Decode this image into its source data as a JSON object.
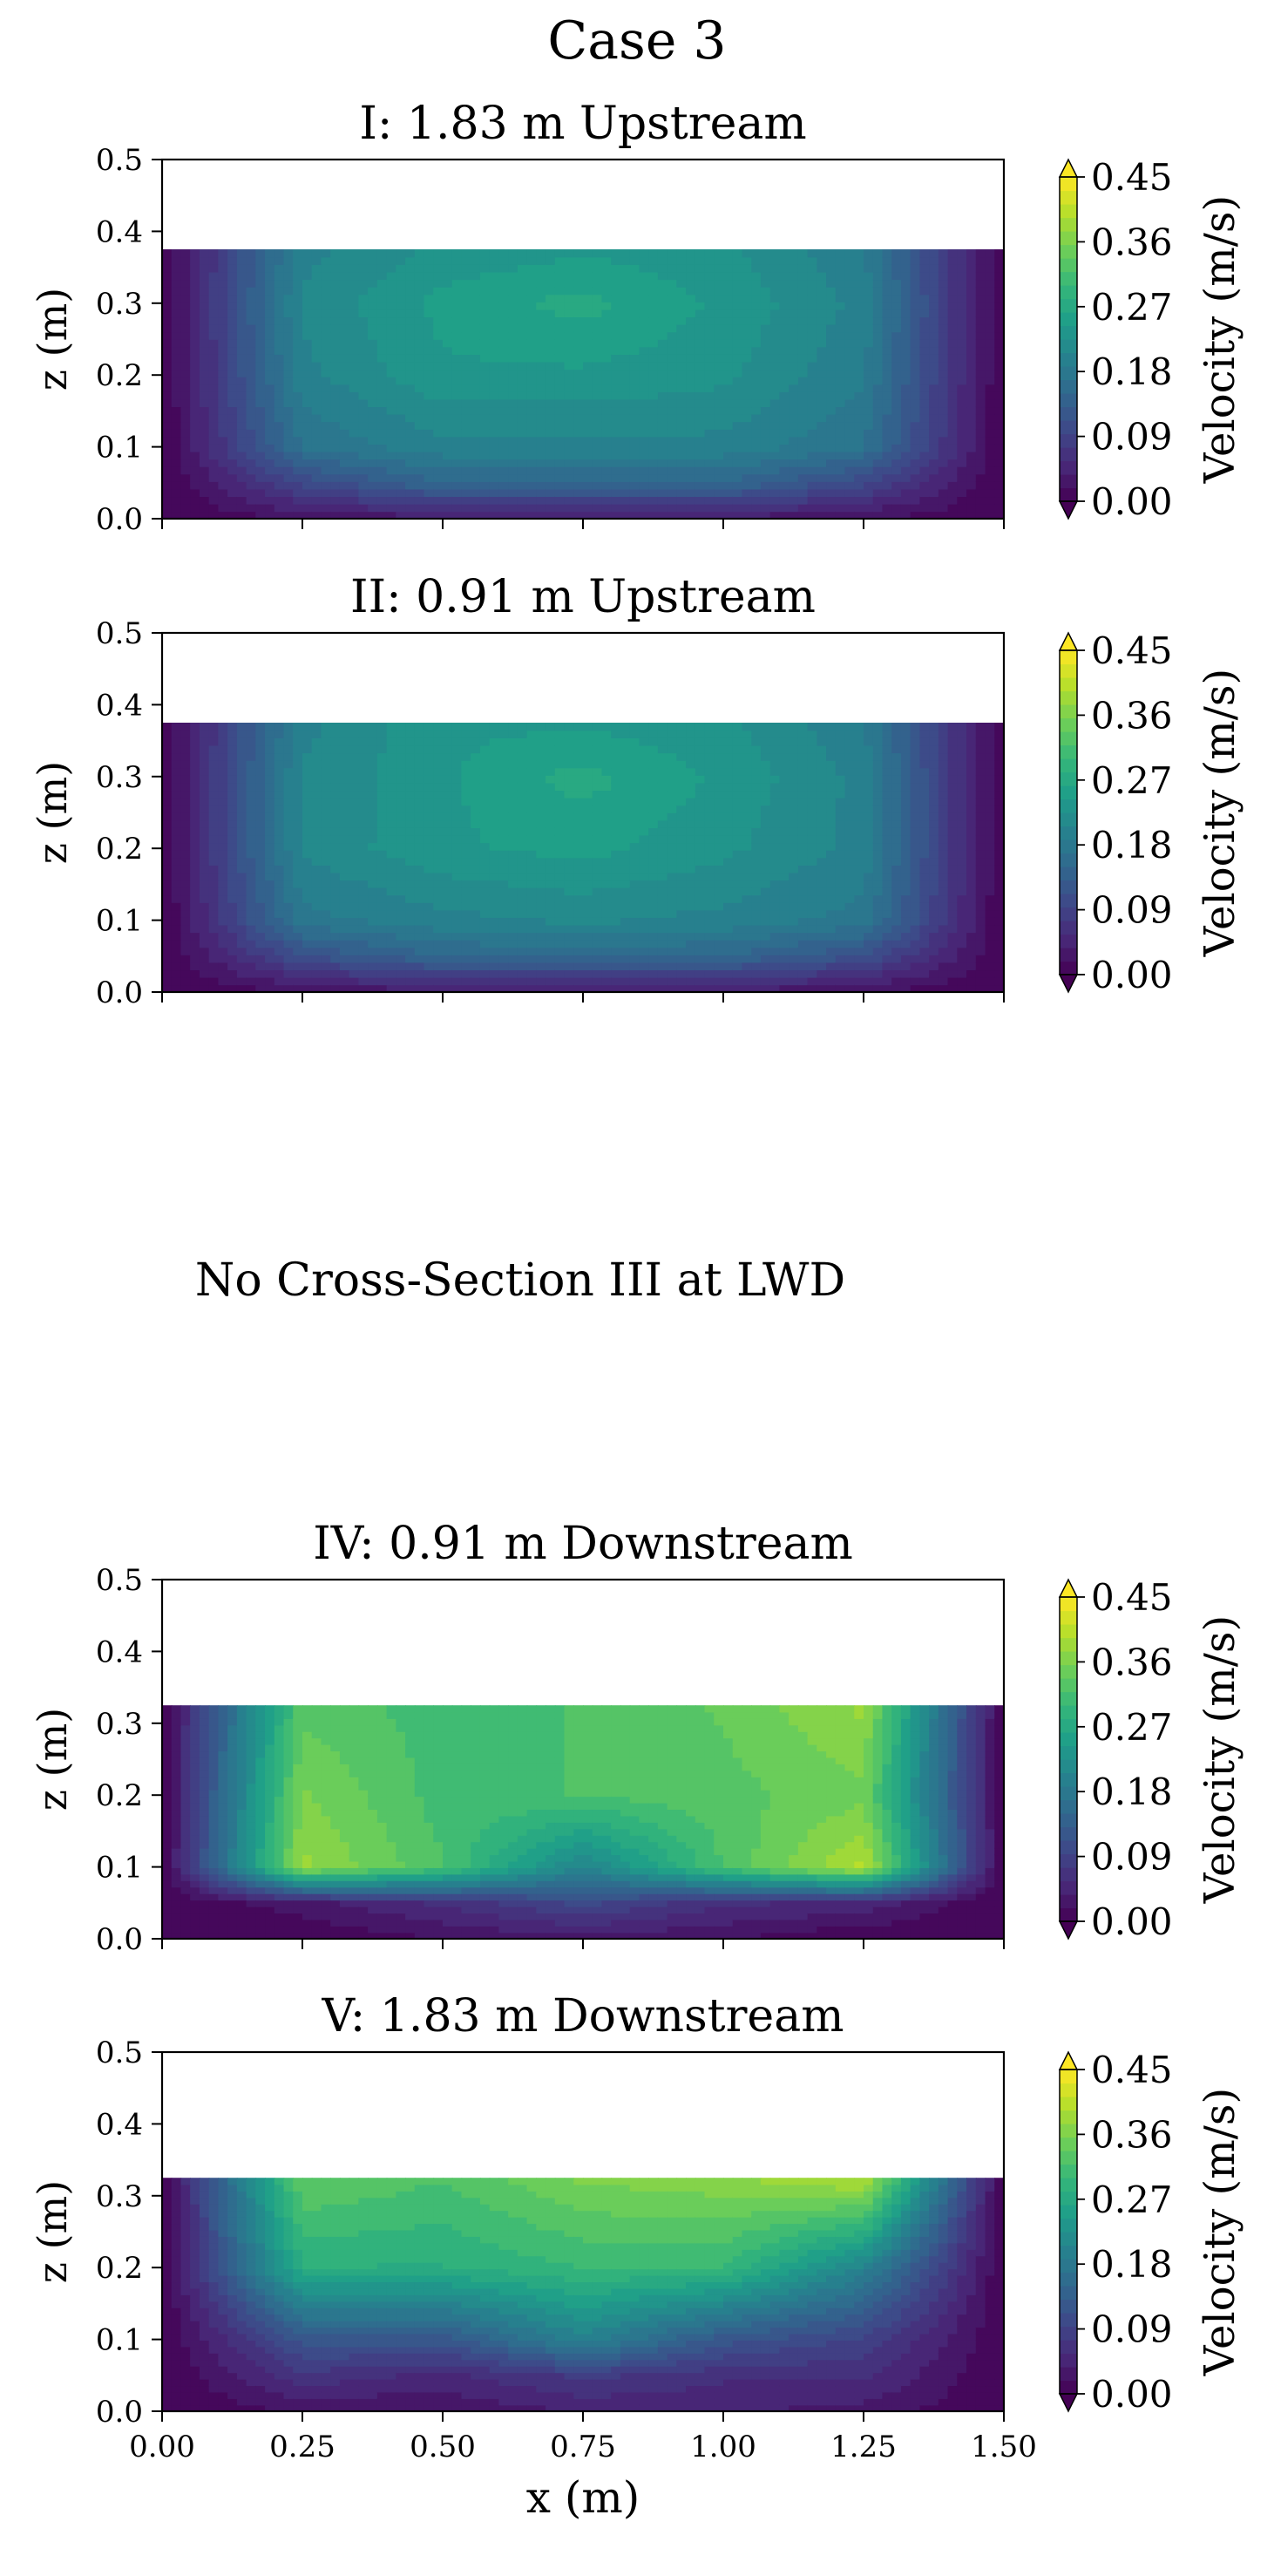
{
  "figure": {
    "title": "Case 3",
    "placeholder_text": "No Cross-Section III at LWD",
    "shared_xlabel": "x (m)"
  },
  "colormap": [
    "#440154",
    "#482878",
    "#3e4989",
    "#31688e",
    "#26828e",
    "#1f9e89",
    "#35b779",
    "#6ece58",
    "#b5de2b",
    "#fde725"
  ],
  "chart_data": [
    {
      "type": "heatmap",
      "title": "I: 1.83 m Upstream",
      "ylabel": "z (m)",
      "xlim": [
        0.0,
        1.5
      ],
      "ylim": [
        0.0,
        0.5
      ],
      "yticks": [
        "0.0",
        "0.1",
        "0.2",
        "0.3",
        "0.4",
        "0.5"
      ],
      "xticks": [],
      "water_depth": 0.375,
      "x": [
        0.0,
        0.25,
        0.5,
        0.75,
        1.0,
        1.25,
        1.5
      ],
      "z": [
        0.0,
        0.05,
        0.1,
        0.2,
        0.3,
        0.375
      ],
      "values": [
        [
          0.0,
          0.02,
          0.03,
          0.03,
          0.03,
          0.02,
          0.0
        ],
        [
          0.0,
          0.1,
          0.15,
          0.15,
          0.15,
          0.1,
          0.0
        ],
        [
          0.0,
          0.17,
          0.2,
          0.2,
          0.2,
          0.17,
          0.0
        ],
        [
          0.0,
          0.2,
          0.24,
          0.24,
          0.23,
          0.19,
          0.0
        ],
        [
          0.0,
          0.21,
          0.25,
          0.27,
          0.24,
          0.2,
          0.0
        ],
        [
          0.0,
          0.2,
          0.23,
          0.24,
          0.23,
          0.19,
          0.0
        ]
      ],
      "colorbar": {
        "label": "Velocity (m/s)",
        "ticks": [
          "0.00",
          "0.09",
          "0.18",
          "0.27",
          "0.36",
          "0.45"
        ],
        "range": [
          0.0,
          0.45
        ]
      }
    },
    {
      "type": "heatmap",
      "title": "II: 0.91 m Upstream",
      "ylabel": "z (m)",
      "xlim": [
        0.0,
        1.5
      ],
      "ylim": [
        0.0,
        0.5
      ],
      "yticks": [
        "0.0",
        "0.1",
        "0.2",
        "0.3",
        "0.4",
        "0.5"
      ],
      "xticks": [],
      "water_depth": 0.375,
      "x": [
        0.0,
        0.25,
        0.5,
        0.75,
        1.0,
        1.25,
        1.5
      ],
      "z": [
        0.0,
        0.05,
        0.1,
        0.2,
        0.3,
        0.375
      ],
      "values": [
        [
          0.0,
          0.02,
          0.03,
          0.03,
          0.03,
          0.02,
          0.0
        ],
        [
          0.0,
          0.11,
          0.15,
          0.15,
          0.15,
          0.11,
          0.0
        ],
        [
          0.0,
          0.18,
          0.2,
          0.21,
          0.2,
          0.18,
          0.0
        ],
        [
          0.0,
          0.21,
          0.24,
          0.25,
          0.23,
          0.2,
          0.0
        ],
        [
          0.0,
          0.21,
          0.24,
          0.27,
          0.24,
          0.2,
          0.0
        ],
        [
          0.0,
          0.2,
          0.24,
          0.24,
          0.23,
          0.19,
          0.0
        ]
      ],
      "colorbar": {
        "label": "Velocity (m/s)",
        "ticks": [
          "0.00",
          "0.09",
          "0.18",
          "0.27",
          "0.36",
          "0.45"
        ],
        "range": [
          0.0,
          0.45
        ]
      }
    },
    {
      "type": "heatmap",
      "title": "IV: 0.91 m Downstream",
      "ylabel": "z (m)",
      "xlim": [
        0.0,
        1.5
      ],
      "ylim": [
        0.0,
        0.5
      ],
      "yticks": [
        "0.0",
        "0.1",
        "0.2",
        "0.3",
        "0.4",
        "0.5"
      ],
      "xticks": [],
      "water_depth": 0.325,
      "x": [
        0.0,
        0.25,
        0.5,
        0.75,
        1.0,
        1.25,
        1.5
      ],
      "z": [
        0.0,
        0.05,
        0.1,
        0.2,
        0.325
      ],
      "values": [
        [
          0.0,
          0.0,
          0.02,
          0.03,
          0.02,
          0.0,
          0.0
        ],
        [
          0.0,
          0.03,
          0.06,
          0.1,
          0.06,
          0.05,
          0.0
        ],
        [
          0.0,
          0.38,
          0.32,
          0.2,
          0.32,
          0.4,
          0.0
        ],
        [
          0.0,
          0.36,
          0.31,
          0.32,
          0.33,
          0.35,
          0.0
        ],
        [
          0.0,
          0.33,
          0.31,
          0.32,
          0.34,
          0.38,
          0.0
        ]
      ],
      "colorbar": {
        "label": "Velocity (m/s)",
        "ticks": [
          "0.00",
          "0.09",
          "0.18",
          "0.27",
          "0.36",
          "0.45"
        ],
        "range": [
          0.0,
          0.45
        ]
      }
    },
    {
      "type": "heatmap",
      "title": "V: 1.83 m Downstream",
      "ylabel": "z (m)",
      "xlabel": "x (m)",
      "xlim": [
        0.0,
        1.5
      ],
      "ylim": [
        0.0,
        0.5
      ],
      "yticks": [
        "0.0",
        "0.1",
        "0.2",
        "0.3",
        "0.4",
        "0.5"
      ],
      "xticks": [
        "0.00",
        "0.25",
        "0.50",
        "0.75",
        "1.00",
        "1.25",
        "1.50"
      ],
      "water_depth": 0.325,
      "x": [
        0.0,
        0.25,
        0.5,
        0.75,
        1.0,
        1.25,
        1.5
      ],
      "z": [
        0.0,
        0.05,
        0.1,
        0.2,
        0.325
      ],
      "values": [
        [
          0.0,
          0.02,
          0.02,
          0.04,
          0.04,
          0.03,
          0.0
        ],
        [
          0.0,
          0.07,
          0.05,
          0.08,
          0.06,
          0.06,
          0.0
        ],
        [
          0.0,
          0.12,
          0.12,
          0.2,
          0.12,
          0.09,
          0.0
        ],
        [
          0.0,
          0.28,
          0.28,
          0.3,
          0.3,
          0.2,
          0.0
        ],
        [
          0.0,
          0.34,
          0.32,
          0.36,
          0.37,
          0.4,
          0.0
        ]
      ],
      "colorbar": {
        "label": "Velocity (m/s)",
        "ticks": [
          "0.00",
          "0.09",
          "0.18",
          "0.27",
          "0.36",
          "0.45"
        ],
        "range": [
          0.0,
          0.45
        ]
      }
    }
  ]
}
